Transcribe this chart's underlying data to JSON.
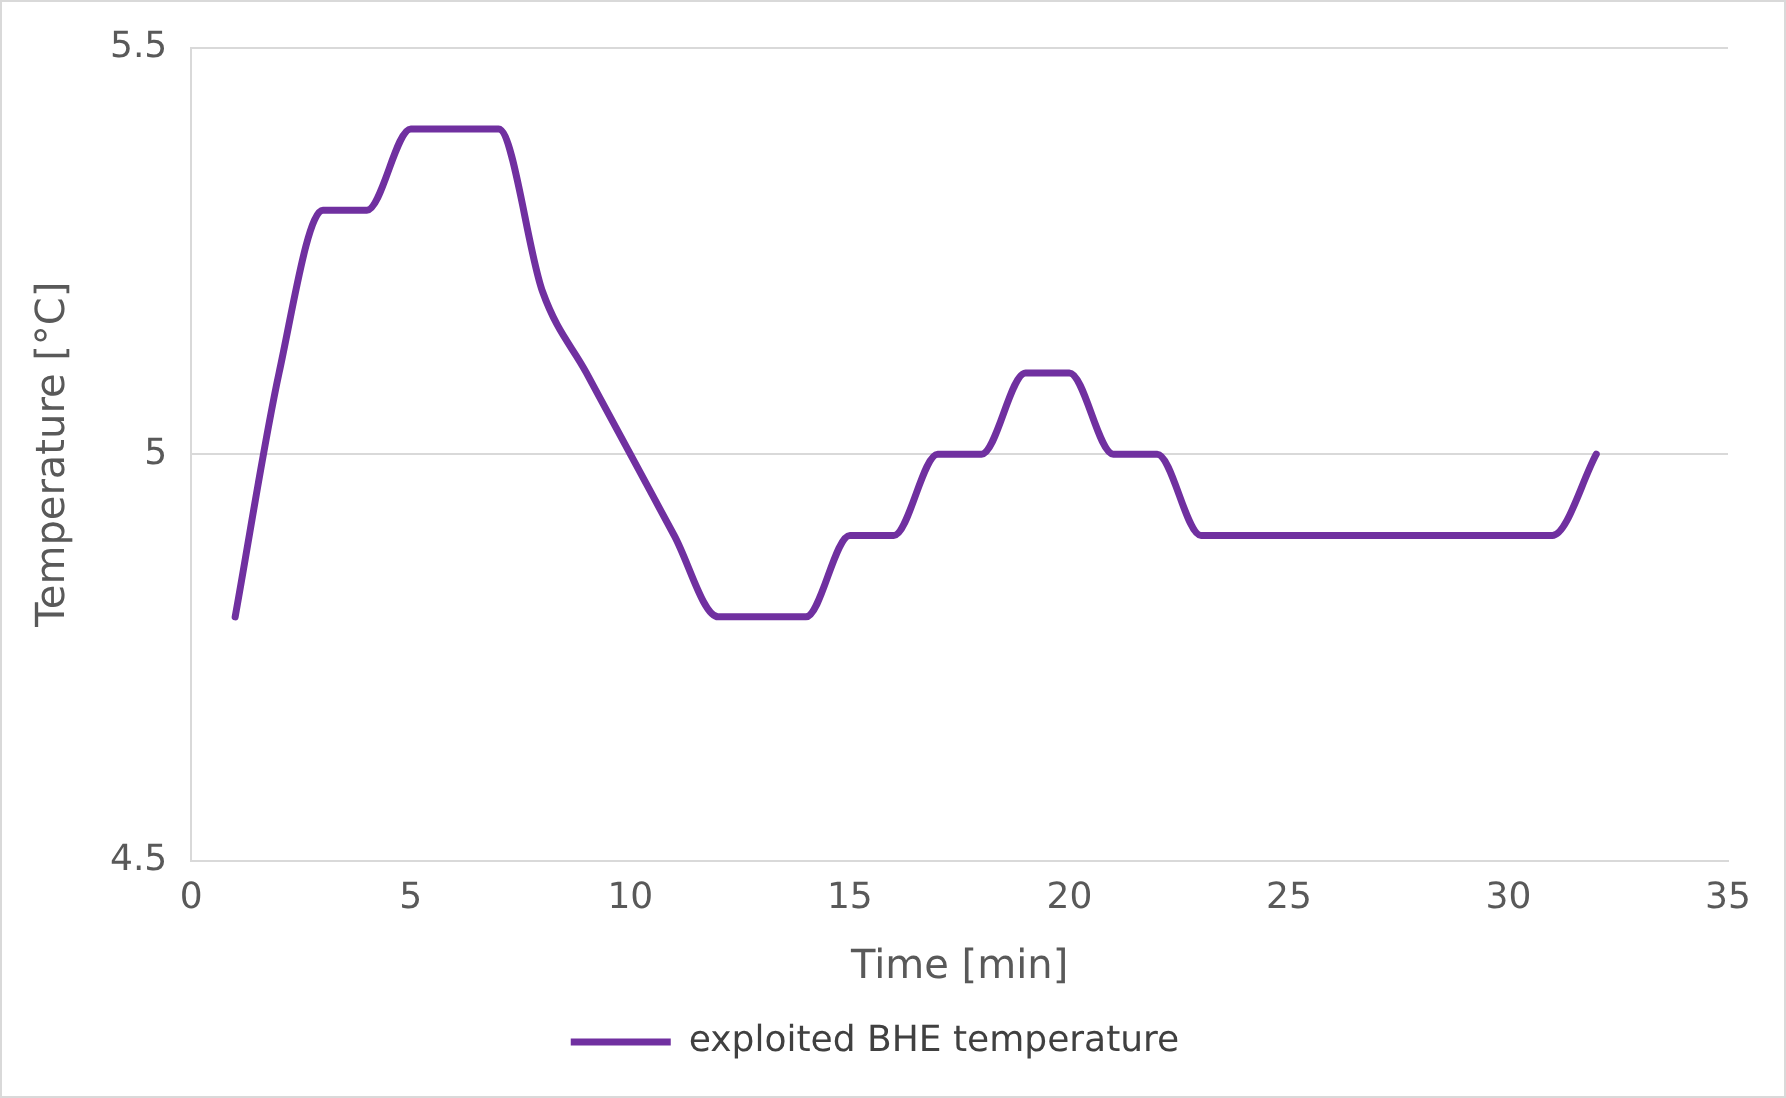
{
  "chart_data": {
    "type": "line",
    "xlabel": "Time [min]",
    "ylabel": "Temperature [°C]",
    "x": [
      1,
      2,
      3,
      4,
      5,
      6,
      7,
      8,
      9,
      10,
      11,
      12,
      13,
      14,
      15,
      16,
      17,
      18,
      19,
      20,
      21,
      22,
      23,
      24,
      25,
      26,
      27,
      28,
      29,
      30,
      31,
      32
    ],
    "series": [
      {
        "name": "exploited BHE temperature",
        "color": "#7030a0",
        "values": [
          4.8,
          5.1,
          5.3,
          5.3,
          5.4,
          5.4,
          5.4,
          5.2,
          5.1,
          5.0,
          4.9,
          4.8,
          4.8,
          4.8,
          4.9,
          4.9,
          5.0,
          5.0,
          5.1,
          5.1,
          5.0,
          5.0,
          4.9,
          4.9,
          4.9,
          4.9,
          4.9,
          4.9,
          4.9,
          4.9,
          4.9,
          5.0
        ]
      }
    ],
    "xlim": [
      0,
      35
    ],
    "xticks": [
      0,
      5,
      10,
      15,
      20,
      25,
      30,
      35
    ],
    "ylim": [
      4.5,
      5.5
    ],
    "yticks": [
      4.5,
      5,
      5.5
    ],
    "grid": "y",
    "legend": "bottom",
    "marker": "none",
    "line_style": "solid"
  }
}
